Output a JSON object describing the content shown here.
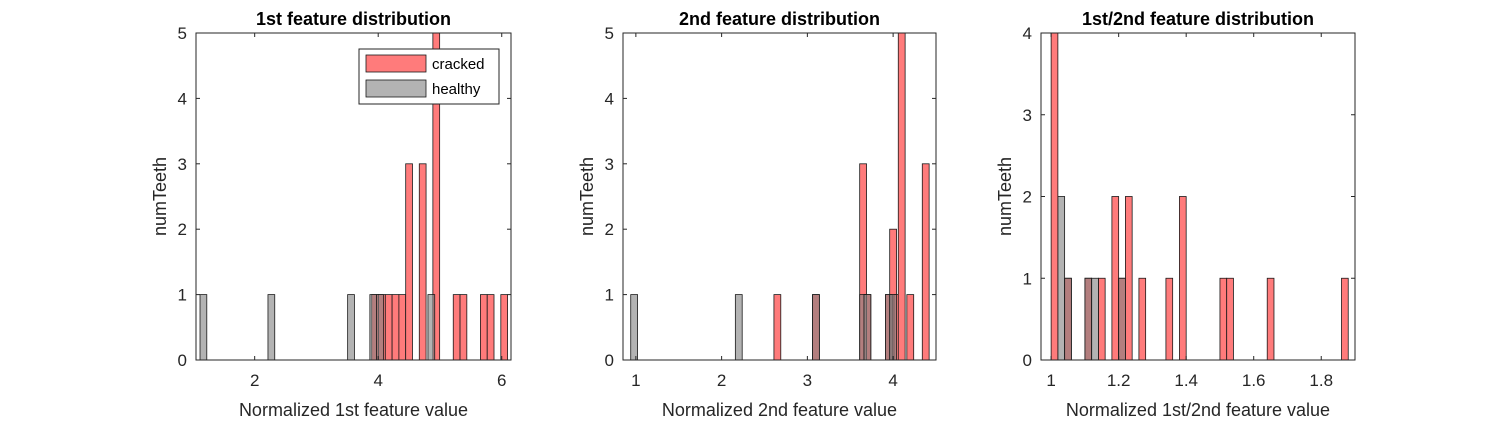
{
  "chart_data": [
    {
      "type": "bar",
      "title": "1st feature distribution",
      "xlabel": "Normalized 1st feature value",
      "ylabel": "numTeeth",
      "xlim": [
        1.05,
        6.15
      ],
      "ylim": [
        0,
        5
      ],
      "xticks": [
        2,
        4,
        6
      ],
      "yticks": [
        0,
        1,
        2,
        3,
        4,
        5
      ],
      "bin_width": 0.11,
      "legend": {
        "placement": "top-right",
        "entries": [
          "cracked",
          "healthy"
        ]
      },
      "series": [
        {
          "name": "cracked",
          "color": "#ff7b7b",
          "x": [
            3.95,
            4.06,
            4.17,
            4.28,
            4.39,
            4.5,
            4.72,
            4.94,
            5.27,
            5.38,
            5.71,
            5.82,
            6.04
          ],
          "values": [
            1,
            1,
            1,
            1,
            1,
            3,
            3,
            5,
            1,
            1,
            1,
            1,
            1
          ]
        },
        {
          "name": "healthy",
          "color": "#808080",
          "x": [
            1.17,
            2.27,
            3.56,
            3.92,
            4.03,
            4.86
          ],
          "values": [
            1,
            1,
            1,
            1,
            1,
            1
          ]
        }
      ]
    },
    {
      "type": "bar",
      "title": "2nd feature distribution",
      "xlabel": "Normalized 2nd feature value",
      "ylabel": "numTeeth",
      "xlim": [
        0.85,
        4.5
      ],
      "ylim": [
        0,
        5
      ],
      "xticks": [
        1,
        2,
        3,
        4
      ],
      "yticks": [
        0,
        1,
        2,
        3,
        4,
        5
      ],
      "bin_width": 0.08,
      "series": [
        {
          "name": "cracked",
          "color": "#ff7b7b",
          "x": [
            2.65,
            3.1,
            3.65,
            3.7,
            3.95,
            4.0,
            4.05,
            4.1,
            4.2,
            4.38
          ],
          "values": [
            1,
            1,
            3,
            1,
            1,
            2,
            1,
            5,
            1,
            3
          ]
        },
        {
          "name": "healthy",
          "color": "#808080",
          "x": [
            0.98,
            2.2,
            3.1,
            3.65,
            3.7,
            3.95,
            4.0
          ],
          "values": [
            1,
            1,
            1,
            1,
            1,
            1,
            1
          ]
        }
      ]
    },
    {
      "type": "bar",
      "title": "1st/2nd feature distribution",
      "xlabel": "Normalized 1st/2nd feature value",
      "ylabel": "numTeeth",
      "xlim": [
        0.97,
        1.9
      ],
      "ylim": [
        0,
        4
      ],
      "xticks": [
        1,
        1.2,
        1.4,
        1.6,
        1.8
      ],
      "yticks": [
        0,
        1,
        2,
        3,
        4
      ],
      "bin_width": 0.02,
      "series": [
        {
          "name": "cracked",
          "color": "#ff7b7b",
          "x": [
            1.01,
            1.05,
            1.11,
            1.15,
            1.19,
            1.21,
            1.23,
            1.27,
            1.35,
            1.39,
            1.51,
            1.53,
            1.65,
            1.87
          ],
          "values": [
            4,
            1,
            1,
            1,
            2,
            1,
            2,
            1,
            1,
            2,
            1,
            1,
            1,
            1
          ]
        },
        {
          "name": "healthy",
          "color": "#808080",
          "x": [
            1.03,
            1.05,
            1.11,
            1.13,
            1.21
          ],
          "values": [
            2,
            1,
            1,
            1,
            1
          ]
        }
      ]
    }
  ]
}
